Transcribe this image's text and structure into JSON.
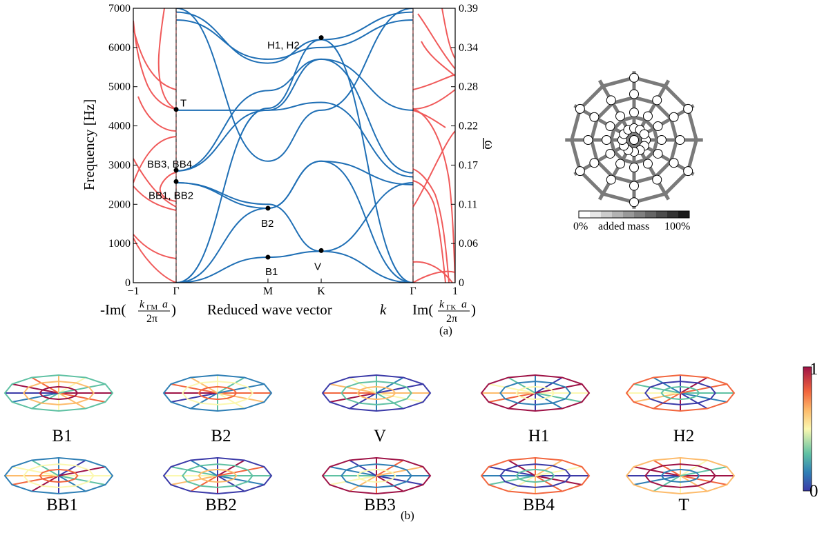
{
  "panel_a_label": "(a)",
  "panel_b_label": "(b)",
  "xlabels": {
    "left": "-Im(",
    "left_frac_num": "k",
    "left_frac_sub": "ΓM",
    "left_frac_a": "a",
    "left_frac_den": "2π",
    "left_close": ")",
    "middle": "Reduced wave vector ",
    "middle_var": "k",
    "right": "Im(",
    "right_frac_num": "k",
    "right_frac_sub": "ΓK",
    "right_frac_a": "a",
    "right_frac_den": "2π",
    "right_close": ")"
  },
  "ylabel_left": "Frequency [Hz]",
  "ylabel_right": "ω̄",
  "colorbar_mass": {
    "left": "0%",
    "middle": "added mass",
    "right": "100%"
  },
  "colorbar_modes": {
    "top": "1",
    "bottom": "0"
  },
  "colors": {
    "real_branch": "#1f6fb5",
    "imag_branch": "#f05a5a",
    "dashed": "#333333",
    "node": "#ffffff",
    "spoke": "#7a7a7a"
  },
  "chart_data": {
    "type": "line",
    "title": "",
    "ylim": [
      0,
      7000
    ],
    "y_ticks": [
      0,
      1000,
      2000,
      3000,
      4000,
      5000,
      6000,
      7000
    ],
    "y_ticks_right": [
      "0",
      "0.06",
      "0.11",
      "0.17",
      "0.22",
      "0.28",
      "0.34",
      "0.39"
    ],
    "x_ticks_left_imag": [
      "−1",
      "Γ"
    ],
    "x_ticks_real": [
      "Γ",
      "M",
      "K",
      "Γ"
    ],
    "x_ticks_right_imag": [
      "Γ",
      "1"
    ],
    "series": [
      {
        "color": "blue",
        "points": [
          [
            0,
            0
          ],
          [
            1,
            650
          ],
          [
            1.58,
            800
          ],
          [
            2.58,
            0
          ]
        ]
      },
      {
        "color": "blue",
        "points": [
          [
            0,
            0
          ],
          [
            1,
            1900
          ],
          [
            1.58,
            3100
          ],
          [
            2.58,
            0
          ]
        ]
      },
      {
        "color": "blue",
        "points": [
          [
            0,
            0
          ],
          [
            1,
            4450
          ],
          [
            1.58,
            6200
          ],
          [
            2.58,
            0
          ]
        ]
      },
      {
        "color": "blue",
        "points": [
          [
            0,
            2550
          ],
          [
            1,
            2000
          ],
          [
            1.58,
            800
          ],
          [
            2.58,
            2550
          ]
        ]
      },
      {
        "color": "blue",
        "points": [
          [
            0,
            2550
          ],
          [
            1,
            1900
          ],
          [
            1.58,
            3100
          ],
          [
            2.58,
            2500
          ]
        ]
      },
      {
        "color": "blue",
        "points": [
          [
            0,
            2850
          ],
          [
            1,
            4400
          ],
          [
            1.58,
            4600
          ],
          [
            2.58,
            2700
          ]
        ]
      },
      {
        "color": "blue",
        "points": [
          [
            0,
            2850
          ],
          [
            1,
            4900
          ],
          [
            1.58,
            5700
          ],
          [
            2.58,
            2800
          ]
        ]
      },
      {
        "color": "blue",
        "points": [
          [
            0,
            4400
          ],
          [
            1,
            4400
          ],
          [
            1.58,
            5700
          ],
          [
            2.58,
            4400
          ]
        ]
      },
      {
        "color": "blue",
        "points": [
          [
            0,
            6900
          ],
          [
            1,
            5600
          ],
          [
            1.58,
            6200
          ],
          [
            2.58,
            6900
          ]
        ]
      },
      {
        "color": "blue",
        "points": [
          [
            0,
            6700
          ],
          [
            1,
            5700
          ],
          [
            1.58,
            6000
          ],
          [
            2.58,
            6700
          ]
        ]
      },
      {
        "color": "blue",
        "points": [
          [
            0,
            7000
          ],
          [
            1,
            3100
          ],
          [
            1.58,
            4400
          ],
          [
            2.58,
            7000
          ]
        ]
      }
    ],
    "annotations": [
      {
        "label": "H1, H2",
        "x": 1.58,
        "y": 6250
      },
      {
        "label": "T",
        "x": 0,
        "y": 4420
      },
      {
        "label": "BB3, BB4",
        "x": 0,
        "y": 2870
      },
      {
        "label": "BB1, BB2",
        "x": 0,
        "y": 2580
      },
      {
        "label": "B2",
        "x": 1,
        "y": 1900
      },
      {
        "label": "B1",
        "x": 1,
        "y": 650
      },
      {
        "label": "V",
        "x": 1.58,
        "y": 820
      }
    ]
  },
  "modes_row1": [
    "B1",
    "B2",
    "V",
    "H1",
    "H2"
  ],
  "modes_row2": [
    "BB1",
    "BB2",
    "BB3",
    "BB4",
    "T"
  ]
}
